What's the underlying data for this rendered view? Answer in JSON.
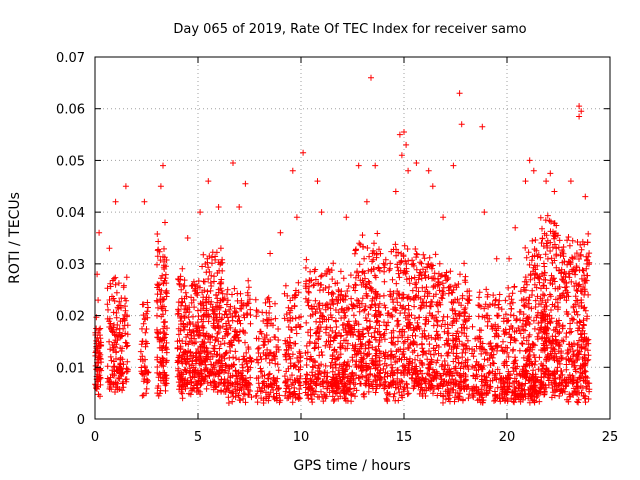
{
  "chart_data": {
    "type": "scatter",
    "title": "Day 065 of 2019, Rate Of TEC Index for receiver samo",
    "xlabel": "GPS time / hours",
    "ylabel": "ROTI / TECUs",
    "xlim": [
      0,
      25
    ],
    "ylim": [
      0,
      0.07
    ],
    "xticks": [
      0,
      5,
      10,
      15,
      20,
      25
    ],
    "xtick_labels": [
      "0",
      "5",
      "10",
      "15",
      "20",
      "25"
    ],
    "yticks": [
      0,
      0.01,
      0.02,
      0.03,
      0.04,
      0.05,
      0.06,
      0.07
    ],
    "ytick_labels": [
      "0",
      "0.01",
      "0.02",
      "0.03",
      "0.04",
      "0.05",
      "0.06",
      "0.07"
    ],
    "grid": true,
    "marker": "plus",
    "marker_color": "#ff0000",
    "series": [
      {
        "name": "ROTI",
        "clusters": [
          {
            "x": [
              0.0,
              0.3
            ],
            "y_base": 0.012,
            "y_spread": 0.012,
            "count": 70,
            "extra": [
              [
                0.1,
                0.028
              ],
              [
                0.2,
                0.036
              ],
              [
                0.15,
                0.023
              ]
            ]
          },
          {
            "x": [
              0.6,
              1.6
            ],
            "y_base": 0.013,
            "y_spread": 0.02,
            "count": 160,
            "extra": [
              [
                1.0,
                0.042
              ],
              [
                1.5,
                0.045
              ],
              [
                0.7,
                0.033
              ]
            ]
          },
          {
            "x": [
              2.2,
              2.6
            ],
            "y_base": 0.012,
            "y_spread": 0.016,
            "count": 50,
            "extra": [
              [
                2.4,
                0.042
              ]
            ]
          },
          {
            "x": [
              3.0,
              3.5
            ],
            "y_base": 0.012,
            "y_spread": 0.03,
            "count": 130,
            "extra": [
              [
                3.3,
                0.049
              ],
              [
                3.2,
                0.045
              ],
              [
                3.4,
                0.038
              ]
            ]
          },
          {
            "x": [
              4.0,
              5.2
            ],
            "y_base": 0.012,
            "y_spread": 0.022,
            "count": 260,
            "extra": [
              [
                4.5,
                0.035
              ],
              [
                5.1,
                0.04
              ]
            ]
          },
          {
            "x": [
              5.2,
              6.2
            ],
            "y_base": 0.013,
            "y_spread": 0.025,
            "count": 230,
            "extra": [
              [
                5.5,
                0.046
              ],
              [
                6.0,
                0.041
              ]
            ]
          },
          {
            "x": [
              6.2,
              7.6
            ],
            "y_base": 0.011,
            "y_spread": 0.02,
            "count": 220,
            "extra": [
              [
                6.7,
                0.0495
              ],
              [
                7.3,
                0.0455
              ],
              [
                7.0,
                0.041
              ]
            ]
          },
          {
            "x": [
              7.8,
              9.0
            ],
            "y_base": 0.01,
            "y_spread": 0.018,
            "count": 140,
            "extra": [
              [
                8.5,
                0.032
              ],
              [
                9.0,
                0.036
              ]
            ]
          },
          {
            "x": [
              9.2,
              10.0
            ],
            "y_base": 0.01,
            "y_spread": 0.022,
            "count": 120,
            "extra": [
              [
                9.6,
                0.048
              ],
              [
                10.1,
                0.0515
              ],
              [
                9.8,
                0.039
              ]
            ]
          },
          {
            "x": [
              10.2,
              11.6
            ],
            "y_base": 0.011,
            "y_spread": 0.024,
            "count": 240,
            "extra": [
              [
                10.8,
                0.046
              ],
              [
                11.0,
                0.04
              ]
            ]
          },
          {
            "x": [
              11.6,
              12.6
            ],
            "y_base": 0.011,
            "y_spread": 0.022,
            "count": 200,
            "extra": [
              [
                12.2,
                0.039
              ]
            ]
          },
          {
            "x": [
              12.6,
              13.9
            ],
            "y_base": 0.012,
            "y_spread": 0.028,
            "count": 270,
            "extra": [
              [
                13.4,
                0.066
              ],
              [
                12.8,
                0.049
              ],
              [
                13.6,
                0.049
              ],
              [
                13.2,
                0.042
              ]
            ]
          },
          {
            "x": [
              14.0,
              15.2
            ],
            "y_base": 0.011,
            "y_spread": 0.028,
            "count": 220,
            "extra": [
              [
                15.0,
                0.0555
              ],
              [
                14.8,
                0.055
              ],
              [
                15.1,
                0.053
              ],
              [
                14.9,
                0.051
              ],
              [
                15.2,
                0.048
              ],
              [
                14.6,
                0.044
              ]
            ]
          },
          {
            "x": [
              15.2,
              16.6
            ],
            "y_base": 0.012,
            "y_spread": 0.026,
            "count": 270,
            "extra": [
              [
                15.6,
                0.0495
              ],
              [
                16.2,
                0.048
              ],
              [
                16.4,
                0.045
              ]
            ]
          },
          {
            "x": [
              16.6,
              18.2
            ],
            "y_base": 0.011,
            "y_spread": 0.024,
            "count": 280,
            "extra": [
              [
                17.7,
                0.063
              ],
              [
                17.8,
                0.057
              ],
              [
                17.4,
                0.049
              ],
              [
                16.9,
                0.039
              ]
            ]
          },
          {
            "x": [
              18.3,
              19.8
            ],
            "y_base": 0.01,
            "y_spread": 0.02,
            "count": 200,
            "extra": [
              [
                18.8,
                0.0565
              ],
              [
                18.9,
                0.04
              ],
              [
                19.5,
                0.031
              ]
            ]
          },
          {
            "x": [
              19.8,
              20.8
            ],
            "y_base": 0.009,
            "y_spread": 0.022,
            "count": 170,
            "extra": [
              [
                20.4,
                0.037
              ],
              [
                20.1,
                0.031
              ]
            ]
          },
          {
            "x": [
              20.8,
              21.6
            ],
            "y_base": 0.01,
            "y_spread": 0.03,
            "count": 190,
            "extra": [
              [
                21.1,
                0.05
              ],
              [
                21.3,
                0.048
              ],
              [
                20.9,
                0.046
              ]
            ]
          },
          {
            "x": [
              21.6,
              22.6
            ],
            "y_base": 0.012,
            "y_spread": 0.032,
            "count": 280,
            "extra": [
              [
                22.1,
                0.0475
              ],
              [
                21.9,
                0.046
              ],
              [
                22.3,
                0.044
              ]
            ]
          },
          {
            "x": [
              22.6,
              24.0
            ],
            "y_base": 0.011,
            "y_spread": 0.03,
            "count": 320,
            "extra": [
              [
                23.5,
                0.0605
              ],
              [
                23.6,
                0.0595
              ],
              [
                23.5,
                0.0585
              ],
              [
                23.1,
                0.046
              ],
              [
                23.8,
                0.043
              ]
            ]
          }
        ]
      }
    ]
  }
}
